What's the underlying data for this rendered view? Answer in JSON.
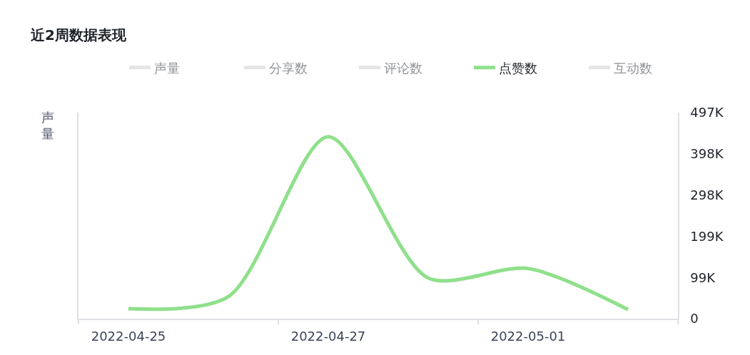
{
  "chart_data": {
    "type": "line",
    "title": "近2周数据表现",
    "ylabel": "声量",
    "categories": [
      "2022-04-25",
      null,
      "2022-04-27",
      null,
      "2022-05-01",
      null
    ],
    "series": [
      {
        "name": "声量",
        "color": "#cccccc",
        "values": [
          null,
          null,
          null,
          null,
          null,
          null
        ]
      },
      {
        "name": "分享数",
        "color": "#cccccc",
        "values": [
          null,
          null,
          null,
          null,
          null,
          null
        ]
      },
      {
        "name": "评论数",
        "color": "#cccccc",
        "values": [
          null,
          null,
          null,
          null,
          null,
          null
        ]
      },
      {
        "name": "点赞数",
        "color": "#8fe08b",
        "axis": "y2",
        "values": [
          24000,
          53000,
          439000,
          98000,
          121000,
          22000
        ]
      },
      {
        "name": "互动数",
        "color": "#cccccc",
        "values": [
          null,
          null,
          null,
          null,
          null,
          null
        ]
      }
    ],
    "y2lim": [
      0,
      497000
    ],
    "y2ticks": [
      0,
      {
        "value": 99400,
        "label": "99K"
      },
      {
        "value": 198800,
        "label": "199K"
      },
      {
        "value": 298200,
        "label": "298K"
      },
      {
        "value": 397600,
        "label": "398K"
      },
      {
        "value": 497000,
        "label": "497K"
      }
    ],
    "legend": "top",
    "marker": "none",
    "line_style": "solid"
  }
}
